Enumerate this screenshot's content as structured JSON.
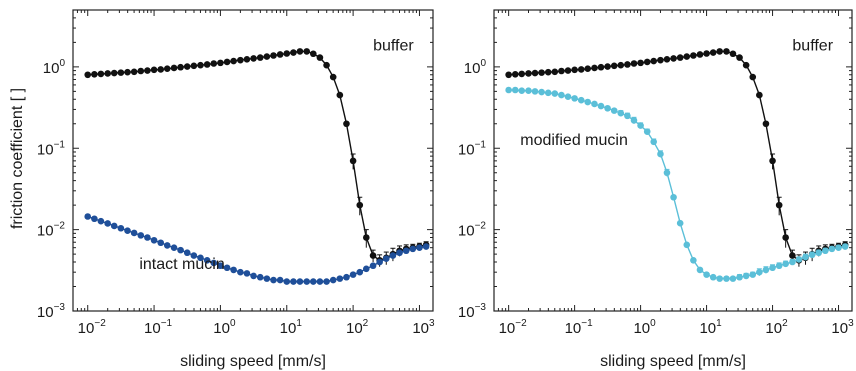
{
  "chart_data": [
    {
      "type": "line",
      "panel": "left",
      "xlabel": "sliding speed [mm/s]",
      "ylabel": "friction coefficient [ ]",
      "xscale": "log",
      "yscale": "log",
      "xlim": [
        0.006,
        1600
      ],
      "ylim": [
        0.001,
        5
      ],
      "x_ticks": [
        {
          "base": "10",
          "exp": "−2",
          "v": 0.01
        },
        {
          "base": "10",
          "exp": "−1",
          "v": 0.1
        },
        {
          "base": "10",
          "exp": "0",
          "v": 1
        },
        {
          "base": "10",
          "exp": "1",
          "v": 10
        },
        {
          "base": "10",
          "exp": "2",
          "v": 100
        },
        {
          "base": "10",
          "exp": "3",
          "v": 1000
        }
      ],
      "y_ticks": [
        {
          "base": "10",
          "exp": "−3",
          "v": 0.001
        },
        {
          "base": "10",
          "exp": "−2",
          "v": 0.01
        },
        {
          "base": "10",
          "exp": "−1",
          "v": 0.1
        },
        {
          "base": "10",
          "exp": "0",
          "v": 1
        }
      ],
      "grid": false,
      "annotations": [
        {
          "text": "buffer",
          "x": 200,
          "y": 1.6
        },
        {
          "text": "intact mucin",
          "x": 0.06,
          "y": 0.0033
        }
      ],
      "series": [
        {
          "color": "#111111",
          "x": [
            0.01,
            0.0126,
            0.0158,
            0.02,
            0.0251,
            0.0316,
            0.0398,
            0.0501,
            0.0631,
            0.0794,
            0.1,
            0.126,
            0.158,
            0.2,
            0.251,
            0.316,
            0.398,
            0.501,
            0.631,
            0.794,
            1,
            1.26,
            1.58,
            2,
            2.51,
            3.16,
            3.98,
            5.01,
            6.31,
            7.94,
            10,
            12.6,
            15.8,
            20,
            25.1,
            31.6,
            39.8,
            50.1,
            63.1,
            79.4,
            100,
            126,
            158,
            200,
            251,
            316,
            398,
            501,
            631,
            794,
            1000,
            1260
          ],
          "y": [
            0.8,
            0.81,
            0.82,
            0.83,
            0.84,
            0.85,
            0.86,
            0.87,
            0.89,
            0.9,
            0.92,
            0.93,
            0.95,
            0.97,
            0.99,
            1.01,
            1.03,
            1.05,
            1.07,
            1.1,
            1.12,
            1.15,
            1.18,
            1.21,
            1.24,
            1.27,
            1.3,
            1.34,
            1.38,
            1.42,
            1.46,
            1.5,
            1.55,
            1.55,
            1.45,
            1.3,
            1.05,
            0.75,
            0.45,
            0.2,
            0.07,
            0.02,
            0.008,
            0.0048,
            0.0042,
            0.0045,
            0.005,
            0.0055,
            0.0058,
            0.006,
            0.0062,
            0.0065
          ],
          "errors": [
            0,
            0,
            0,
            0,
            0,
            0,
            0,
            0,
            0,
            0,
            0,
            0,
            0,
            0,
            0,
            0,
            0,
            0,
            0,
            0,
            0,
            0,
            0,
            0,
            0,
            0,
            0,
            0,
            0,
            0,
            0,
            0,
            0,
            0,
            0,
            0,
            0,
            0,
            0,
            0,
            0.015,
            0.005,
            0.002,
            0.0008,
            0.0007,
            0.0008,
            0.0009,
            0.0008,
            0.0007,
            0.0006,
            0.0006,
            0.0006
          ]
        },
        {
          "color": "#1f4f99",
          "x": [
            0.01,
            0.0126,
            0.0158,
            0.02,
            0.0251,
            0.0316,
            0.0398,
            0.0501,
            0.0631,
            0.0794,
            0.1,
            0.126,
            0.158,
            0.2,
            0.251,
            0.316,
            0.398,
            0.501,
            0.631,
            0.794,
            1,
            1.26,
            1.58,
            2,
            2.51,
            3.16,
            3.98,
            5.01,
            6.31,
            7.94,
            10,
            12.6,
            15.8,
            20,
            25.1,
            31.6,
            39.8,
            50.1,
            63.1,
            79.4,
            100,
            126,
            158,
            200,
            251,
            316,
            398,
            501,
            631,
            794,
            1000,
            1260
          ],
          "y": [
            0.0145,
            0.0136,
            0.0127,
            0.0119,
            0.0111,
            0.0104,
            0.0097,
            0.0091,
            0.0085,
            0.008,
            0.0074,
            0.0069,
            0.0064,
            0.006,
            0.0056,
            0.0052,
            0.0048,
            0.0045,
            0.0042,
            0.0039,
            0.0036,
            0.0034,
            0.0032,
            0.003,
            0.0029,
            0.0027,
            0.0026,
            0.0025,
            0.0024,
            0.0024,
            0.0023,
            0.0023,
            0.0023,
            0.0023,
            0.0023,
            0.0023,
            0.0023,
            0.0024,
            0.0025,
            0.0026,
            0.0028,
            0.003,
            0.0033,
            0.0036,
            0.004,
            0.0044,
            0.0048,
            0.0052,
            0.0055,
            0.0058,
            0.006,
            0.0062
          ]
        }
      ]
    },
    {
      "type": "line",
      "panel": "right",
      "xlabel": "sliding speed [mm/s]",
      "ylabel": "",
      "xscale": "log",
      "yscale": "log",
      "xlim": [
        0.006,
        1600
      ],
      "ylim": [
        0.001,
        5
      ],
      "x_ticks": [
        {
          "base": "10",
          "exp": "−2",
          "v": 0.01
        },
        {
          "base": "10",
          "exp": "−1",
          "v": 0.1
        },
        {
          "base": "10",
          "exp": "0",
          "v": 1
        },
        {
          "base": "10",
          "exp": "1",
          "v": 10
        },
        {
          "base": "10",
          "exp": "2",
          "v": 100
        },
        {
          "base": "10",
          "exp": "3",
          "v": 1000
        }
      ],
      "y_ticks": [
        {
          "base": "10",
          "exp": "−3",
          "v": 0.001
        },
        {
          "base": "10",
          "exp": "−2",
          "v": 0.01
        },
        {
          "base": "10",
          "exp": "−1",
          "v": 0.1
        },
        {
          "base": "10",
          "exp": "0",
          "v": 1
        }
      ],
      "grid": false,
      "annotations": [
        {
          "text": "buffer",
          "x": 200,
          "y": 1.6
        },
        {
          "text": "modified mucin",
          "x": 0.015,
          "y": 0.11
        }
      ],
      "series": [
        {
          "color": "#111111",
          "x": [
            0.01,
            0.0126,
            0.0158,
            0.02,
            0.0251,
            0.0316,
            0.0398,
            0.0501,
            0.0631,
            0.0794,
            0.1,
            0.126,
            0.158,
            0.2,
            0.251,
            0.316,
            0.398,
            0.501,
            0.631,
            0.794,
            1,
            1.26,
            1.58,
            2,
            2.51,
            3.16,
            3.98,
            5.01,
            6.31,
            7.94,
            10,
            12.6,
            15.8,
            20,
            25.1,
            31.6,
            39.8,
            50.1,
            63.1,
            79.4,
            100,
            126,
            158,
            200,
            251,
            316,
            398,
            501,
            631,
            794,
            1000,
            1260
          ],
          "y": [
            0.8,
            0.81,
            0.82,
            0.83,
            0.84,
            0.85,
            0.86,
            0.87,
            0.89,
            0.9,
            0.92,
            0.93,
            0.95,
            0.97,
            0.99,
            1.01,
            1.03,
            1.05,
            1.07,
            1.1,
            1.12,
            1.15,
            1.18,
            1.21,
            1.24,
            1.27,
            1.3,
            1.34,
            1.38,
            1.42,
            1.46,
            1.5,
            1.55,
            1.55,
            1.45,
            1.3,
            1.05,
            0.75,
            0.45,
            0.2,
            0.07,
            0.02,
            0.008,
            0.0048,
            0.0042,
            0.0045,
            0.005,
            0.0055,
            0.0058,
            0.006,
            0.0062,
            0.0065
          ],
          "errors": [
            0,
            0,
            0,
            0,
            0,
            0,
            0,
            0,
            0,
            0,
            0,
            0,
            0,
            0,
            0,
            0,
            0,
            0,
            0,
            0,
            0,
            0,
            0,
            0,
            0,
            0,
            0,
            0,
            0,
            0,
            0,
            0,
            0,
            0,
            0,
            0,
            0,
            0,
            0,
            0,
            0.015,
            0.005,
            0.002,
            0.0008,
            0.0007,
            0.0008,
            0.0009,
            0.0008,
            0.0007,
            0.0006,
            0.0006,
            0.0006
          ]
        },
        {
          "color": "#5bbfd8",
          "x": [
            0.01,
            0.0126,
            0.0158,
            0.02,
            0.0251,
            0.0316,
            0.0398,
            0.0501,
            0.0631,
            0.0794,
            0.1,
            0.126,
            0.158,
            0.2,
            0.251,
            0.316,
            0.398,
            0.501,
            0.631,
            0.794,
            1,
            1.26,
            1.58,
            2,
            2.51,
            3.16,
            3.98,
            5.01,
            6.31,
            7.94,
            10,
            12.6,
            15.8,
            20,
            25.1,
            31.6,
            39.8,
            50.1,
            63.1,
            79.4,
            100,
            126,
            158,
            200,
            251,
            316,
            398,
            501,
            631,
            794,
            1000,
            1260
          ],
          "y": [
            0.52,
            0.52,
            0.51,
            0.51,
            0.5,
            0.49,
            0.48,
            0.47,
            0.45,
            0.43,
            0.41,
            0.39,
            0.37,
            0.35,
            0.33,
            0.31,
            0.29,
            0.27,
            0.25,
            0.22,
            0.19,
            0.16,
            0.12,
            0.085,
            0.05,
            0.025,
            0.012,
            0.0065,
            0.0042,
            0.0032,
            0.0028,
            0.0026,
            0.0025,
            0.0025,
            0.0025,
            0.0026,
            0.0027,
            0.0028,
            0.003,
            0.0032,
            0.0034,
            0.0036,
            0.0038,
            0.004,
            0.0043,
            0.0046,
            0.0049,
            0.0052,
            0.0055,
            0.0058,
            0.006,
            0.0062
          ],
          "errors": [
            0,
            0,
            0,
            0,
            0,
            0,
            0,
            0,
            0,
            0,
            0,
            0,
            0,
            0,
            0,
            0,
            0,
            0.02,
            0.02,
            0.02,
            0.015,
            0.012,
            0.01,
            0.008,
            0.005,
            0,
            0,
            0,
            0,
            0,
            0,
            0,
            0,
            0,
            0,
            0.0002,
            0.0002,
            0.0002,
            0.0003,
            0.0003,
            0.0003,
            0.0003,
            0.0003,
            0.0003,
            0.0003,
            0.0004,
            0.0004,
            0.0004,
            0.0004,
            0.0004,
            0.0004,
            0.0004
          ]
        }
      ]
    }
  ]
}
